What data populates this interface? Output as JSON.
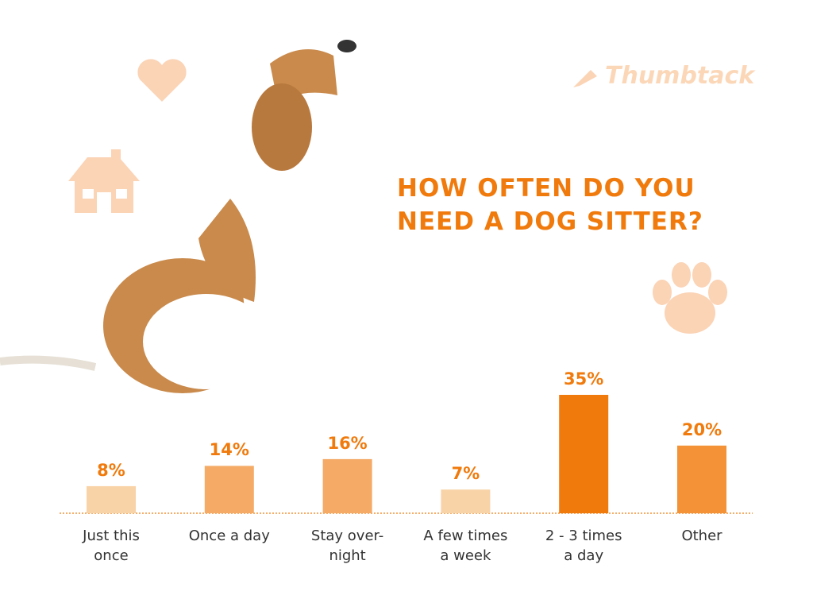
{
  "brand": "Thumbtack",
  "chart_data": {
    "type": "bar",
    "title": "HOW OFTEN DO YOU\nNEED A DOG SITTER?",
    "categories": [
      "Just this\nonce",
      "Once a day",
      "Stay over-\nnight",
      "A few times\na week",
      "2 - 3 times\na day",
      "Other"
    ],
    "values": [
      8,
      14,
      16,
      7,
      35,
      20
    ],
    "value_labels": [
      "8%",
      "14%",
      "16%",
      "7%",
      "35%",
      "20%"
    ],
    "colors": [
      "#f9d3a8",
      "#f5aa66",
      "#f5aa66",
      "#f9d3a8",
      "#f07a0c",
      "#f39236"
    ]
  }
}
